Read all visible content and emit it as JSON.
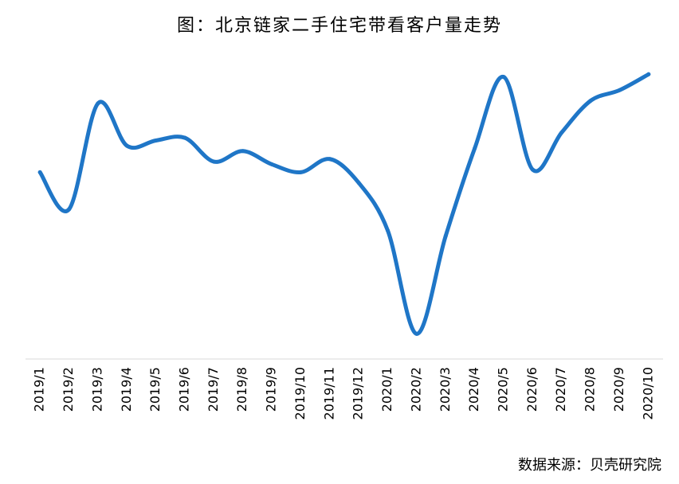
{
  "title": "图：北京链家二手住宅带看客户量走势",
  "source": "数据来源：贝壳研究院",
  "colors": {
    "line": "#1f76c7",
    "axis": "#d9d9d9"
  },
  "chart_data": {
    "type": "line",
    "title": "图：北京链家二手住宅带看客户量走势",
    "xlabel": "",
    "ylabel": "",
    "categories": [
      "2019/1",
      "2019/2",
      "2019/3",
      "2019/4",
      "2019/5",
      "2019/6",
      "2019/7",
      "2019/8",
      "2019/9",
      "2019/10",
      "2019/11",
      "2019/12",
      "2020/1",
      "2020/2",
      "2020/3",
      "2020/4",
      "2020/5",
      "2020/6",
      "2020/7",
      "2020/8",
      "2020/9",
      "2020/10"
    ],
    "series": [
      {
        "name": "",
        "values": [
          66,
          52,
          92,
          76,
          78,
          79,
          70,
          74,
          69,
          66,
          71,
          62,
          44,
          5,
          42,
          75,
          102,
          67,
          81,
          93,
          97,
          103
        ]
      }
    ],
    "ylim": [
      0,
      110
    ],
    "grid": false,
    "legend": "none",
    "smooth": true
  }
}
